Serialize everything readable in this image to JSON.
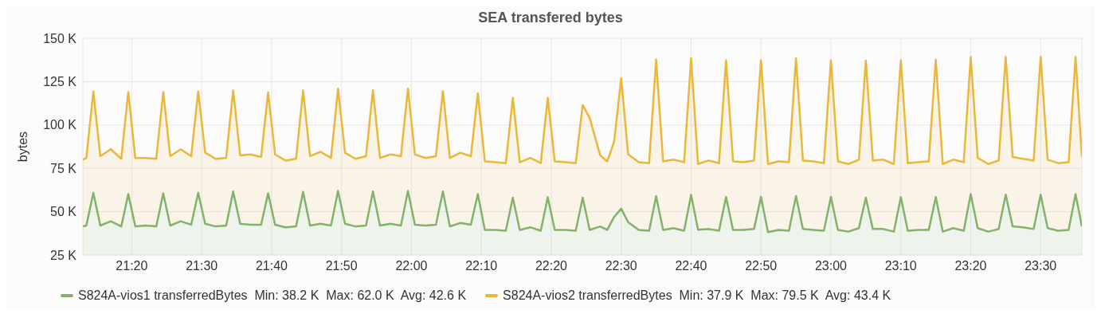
{
  "chart_data": {
    "type": "area",
    "stacked": true,
    "title": "SEA transfered bytes",
    "ylabel": "bytes",
    "x": [
      21.2167,
      21.225,
      21.2417,
      21.2583,
      21.2833,
      21.3083,
      21.325,
      21.3417,
      21.3667,
      21.3917,
      21.4083,
      21.425,
      21.45,
      21.475,
      21.4917,
      21.5083,
      21.5333,
      21.5583,
      21.575,
      21.5917,
      21.6167,
      21.6417,
      21.6583,
      21.675,
      21.7,
      21.725,
      21.7417,
      21.7583,
      21.7833,
      21.8083,
      21.825,
      21.8417,
      21.8667,
      21.8917,
      21.9083,
      21.925,
      21.95,
      21.975,
      21.9917,
      22.0083,
      22.0333,
      22.0583,
      22.075,
      22.0917,
      22.1167,
      22.1417,
      22.1583,
      22.175,
      22.2,
      22.225,
      22.2417,
      22.2583,
      22.2833,
      22.3083,
      22.325,
      22.3417,
      22.3667,
      22.3917,
      22.4083,
      22.425,
      22.45,
      22.4667,
      22.4833,
      22.5,
      22.5167,
      22.5417,
      22.5667,
      22.5833,
      22.6,
      22.625,
      22.65,
      22.6667,
      22.6833,
      22.7083,
      22.7333,
      22.75,
      22.7667,
      22.7917,
      22.8167,
      22.8333,
      22.85,
      22.875,
      22.9,
      22.9167,
      22.9333,
      22.9583,
      22.9833,
      23.0,
      23.0167,
      23.0417,
      23.0667,
      23.0833,
      23.1,
      23.125,
      23.15,
      23.1667,
      23.1833,
      23.2083,
      23.2333,
      23.25,
      23.2667,
      23.2917,
      23.3167,
      23.3333,
      23.35,
      23.375,
      23.4,
      23.4167,
      23.4333,
      23.4583,
      23.4833,
      23.5,
      23.5167,
      23.5417,
      23.5667,
      23.5833,
      23.5983
    ],
    "series": [
      {
        "name": "S824A-vios1 transferredBytes  Min: 38.2 K  Max: 62.0 K  Avg: 42.6 K",
        "color": "#7eb26d",
        "values": [
          41.5,
          42,
          60.9,
          42,
          44.5,
          41.5,
          60.2,
          41.5,
          42,
          41.5,
          60.6,
          42,
          44.5,
          42.5,
          60.9,
          43,
          41.5,
          42,
          61.7,
          43,
          42.5,
          42.5,
          60.6,
          42.5,
          41,
          41.5,
          61.4,
          42,
          43,
          42,
          62.0,
          43,
          41.5,
          42,
          61.7,
          42,
          43,
          42,
          62.0,
          42.5,
          42,
          42.5,
          61.7,
          41.5,
          43.5,
          42.5,
          60.2,
          39.5,
          39.5,
          39,
          58.1,
          39.5,
          41,
          39,
          58.3,
          39.5,
          39.5,
          39,
          58.1,
          39.5,
          41.5,
          39.5,
          47,
          51.7,
          44,
          39.5,
          39,
          58.9,
          39.5,
          40.5,
          39,
          59.7,
          39.6,
          40,
          39,
          58.5,
          39.5,
          39.5,
          40,
          58.5,
          38.2,
          39.5,
          39,
          59.0,
          40,
          39.5,
          39,
          58.5,
          39.5,
          38.5,
          40.5,
          58.1,
          40,
          40,
          38.5,
          58.4,
          39,
          39.5,
          39.5,
          58.4,
          38.5,
          40.5,
          39,
          60.2,
          40.5,
          38.5,
          40,
          59.8,
          41.5,
          41,
          40,
          59.8,
          40.5,
          39,
          39.5,
          60.2,
          41.5
        ]
      },
      {
        "name": "S824A-vios2 transferredBytes  Min: 37.9 K  Max: 79.5 K  Avg: 43.4 K",
        "color": "#eab839",
        "values": [
          38.5,
          39,
          58.4,
          40,
          41.5,
          39,
          58.8,
          39.5,
          39,
          39,
          58.4,
          40,
          41.5,
          39.5,
          58.4,
          41,
          39,
          39,
          58.2,
          39.5,
          40.5,
          39,
          58.2,
          40.5,
          38.5,
          39,
          58.5,
          40,
          41.5,
          39,
          58.9,
          41,
          39,
          40,
          58.3,
          39,
          40,
          40,
          58.9,
          40.5,
          39,
          39.5,
          57.8,
          39.5,
          40.5,
          39.5,
          58,
          39.5,
          39,
          39,
          57.5,
          39,
          40,
          39,
          57.3,
          39.5,
          39,
          39,
          53.4,
          64.5,
          41,
          39.5,
          43.4,
          75.3,
          39,
          39,
          39,
          78.8,
          39.5,
          39.5,
          39.5,
          78.8,
          37.9,
          39.5,
          39,
          78.7,
          39.5,
          39,
          39.5,
          78.8,
          39.3,
          39.5,
          39.5,
          79.4,
          39.5,
          39.5,
          39,
          78.8,
          39.5,
          39,
          39.5,
          79,
          39.5,
          40,
          39,
          78.9,
          39,
          39,
          39.5,
          79.2,
          39,
          39.5,
          39.5,
          79,
          40.5,
          39,
          39.5,
          79.4,
          40,
          39.5,
          39.5,
          79.5,
          39.5,
          39,
          39,
          79,
          40
        ]
      }
    ],
    "xlim": [
      21.2167,
      23.5983
    ],
    "xticks": [
      {
        "value": 21.3333,
        "label": "21:20"
      },
      {
        "value": 21.5,
        "label": "21:30"
      },
      {
        "value": 21.6667,
        "label": "21:40"
      },
      {
        "value": 21.8333,
        "label": "21:50"
      },
      {
        "value": 22.0,
        "label": "22:00"
      },
      {
        "value": 22.1667,
        "label": "22:10"
      },
      {
        "value": 22.3333,
        "label": "22:20"
      },
      {
        "value": 22.5,
        "label": "22:30"
      },
      {
        "value": 22.6667,
        "label": "22:40"
      },
      {
        "value": 22.8333,
        "label": "22:50"
      },
      {
        "value": 23.0,
        "label": "23:00"
      },
      {
        "value": 23.1667,
        "label": "23:10"
      },
      {
        "value": 23.3333,
        "label": "23:20"
      },
      {
        "value": 23.5,
        "label": "23:30"
      }
    ],
    "ylim": [
      25,
      150
    ],
    "yticks": [
      {
        "value": 25,
        "label": "25 K"
      },
      {
        "value": 50,
        "label": "50 K"
      },
      {
        "value": 75,
        "label": "75 K"
      },
      {
        "value": 100,
        "label": "100 K"
      },
      {
        "value": 125,
        "label": "125 K"
      },
      {
        "value": 150,
        "label": "150 K"
      }
    ],
    "grid": true,
    "legend": "bottom"
  }
}
